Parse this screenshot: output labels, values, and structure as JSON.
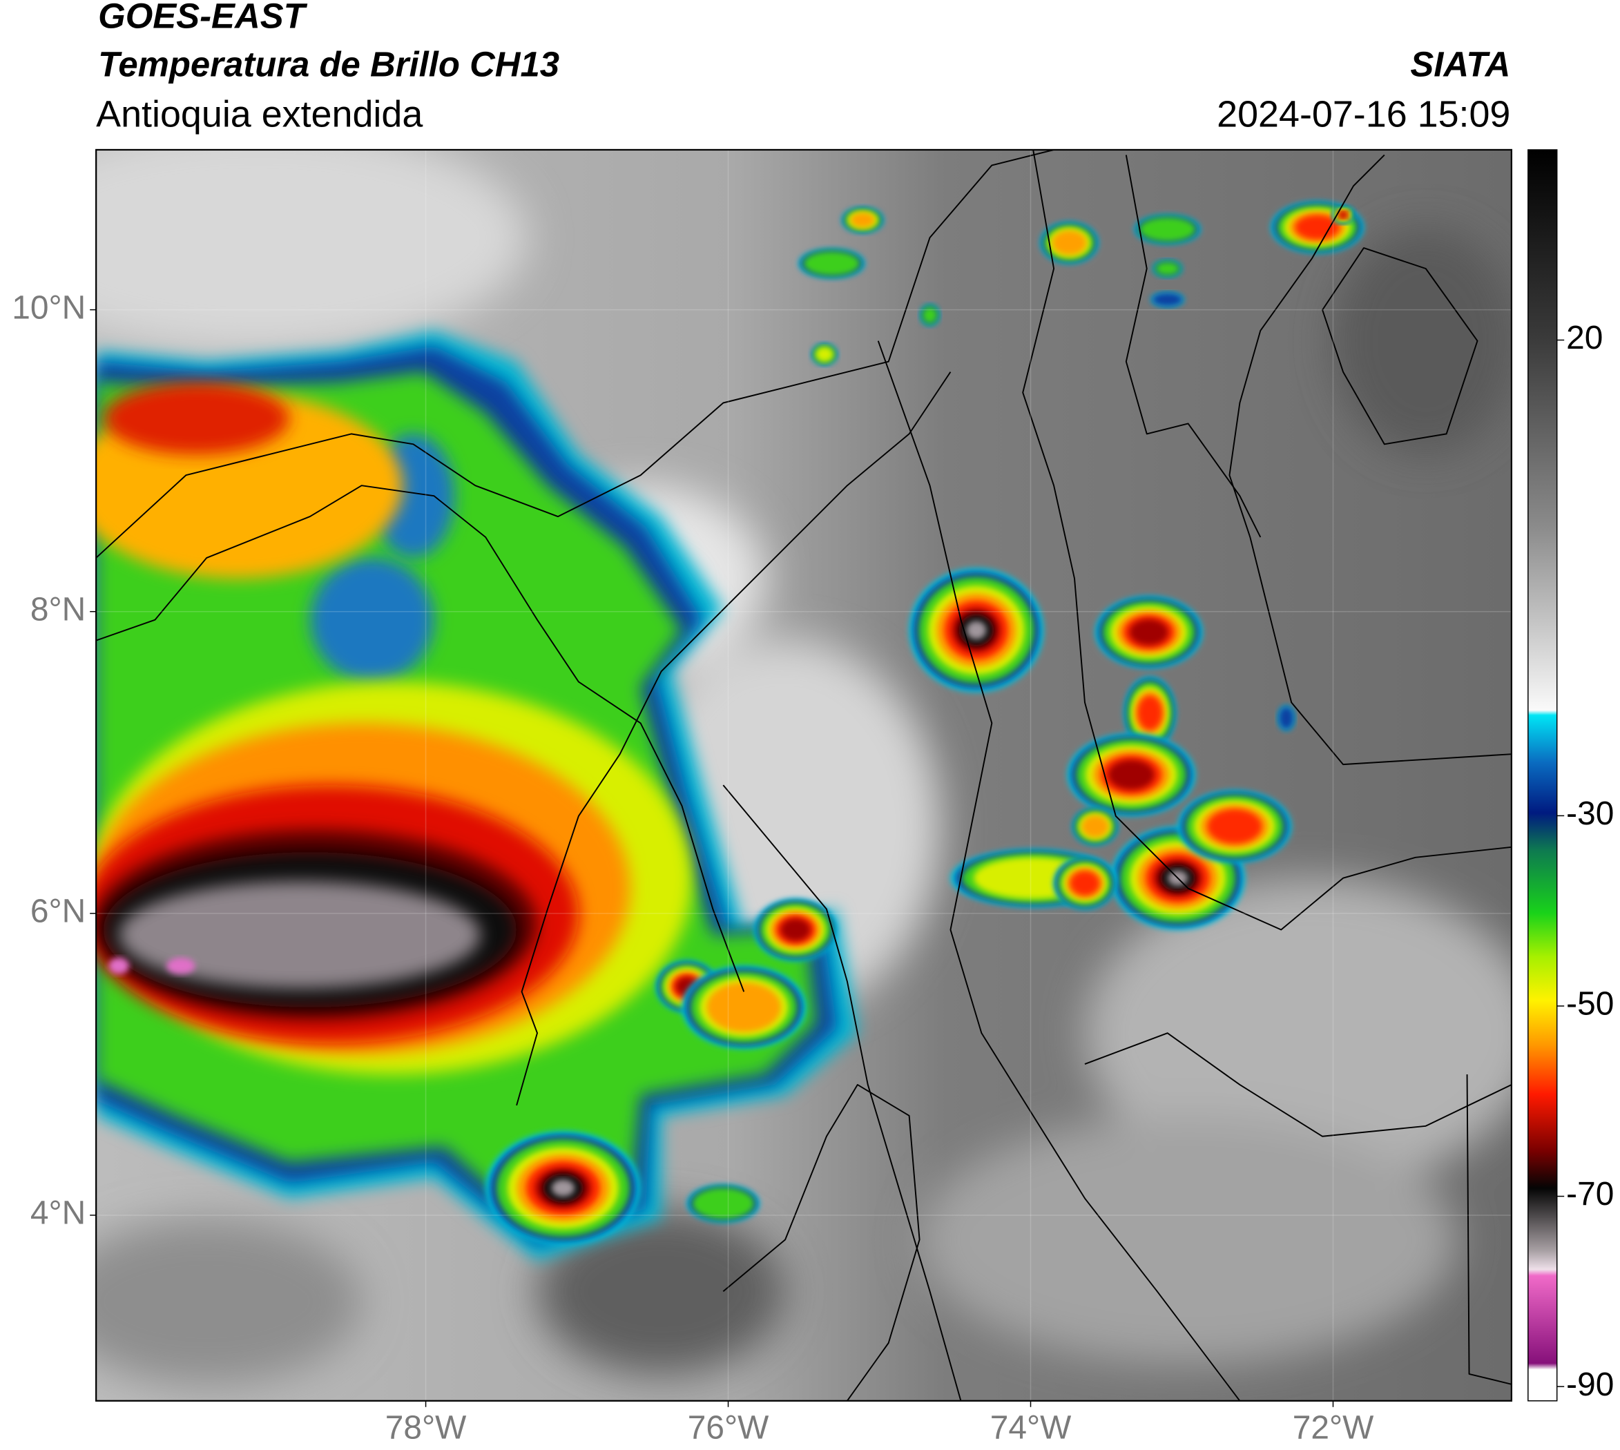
{
  "header": {
    "satellite": "GOES-EAST",
    "product": "Temperatura de Brillo CH13",
    "region": "Antioquia extendida",
    "source": "SIATA",
    "datetime": "2024-07-16 15:09"
  },
  "map": {
    "lon_range": [
      -80.18,
      -70.82
    ],
    "lat_range": [
      2.77,
      11.06
    ],
    "lat_ticks": [
      {
        "value": 10,
        "label": "10°N"
      },
      {
        "value": 8,
        "label": "8°N"
      },
      {
        "value": 6,
        "label": "6°N"
      },
      {
        "value": 4,
        "label": "4°N"
      }
    ],
    "lon_ticks": [
      {
        "value": -78,
        "label": "78°W"
      },
      {
        "value": -76,
        "label": "76°W"
      },
      {
        "value": -74,
        "label": "74°W"
      },
      {
        "value": -72,
        "label": "72°W"
      }
    ]
  },
  "colorbar": {
    "range": [
      -91.5,
      40
    ],
    "ticks": [
      20,
      -30,
      -50,
      -70,
      -90
    ]
  }
}
